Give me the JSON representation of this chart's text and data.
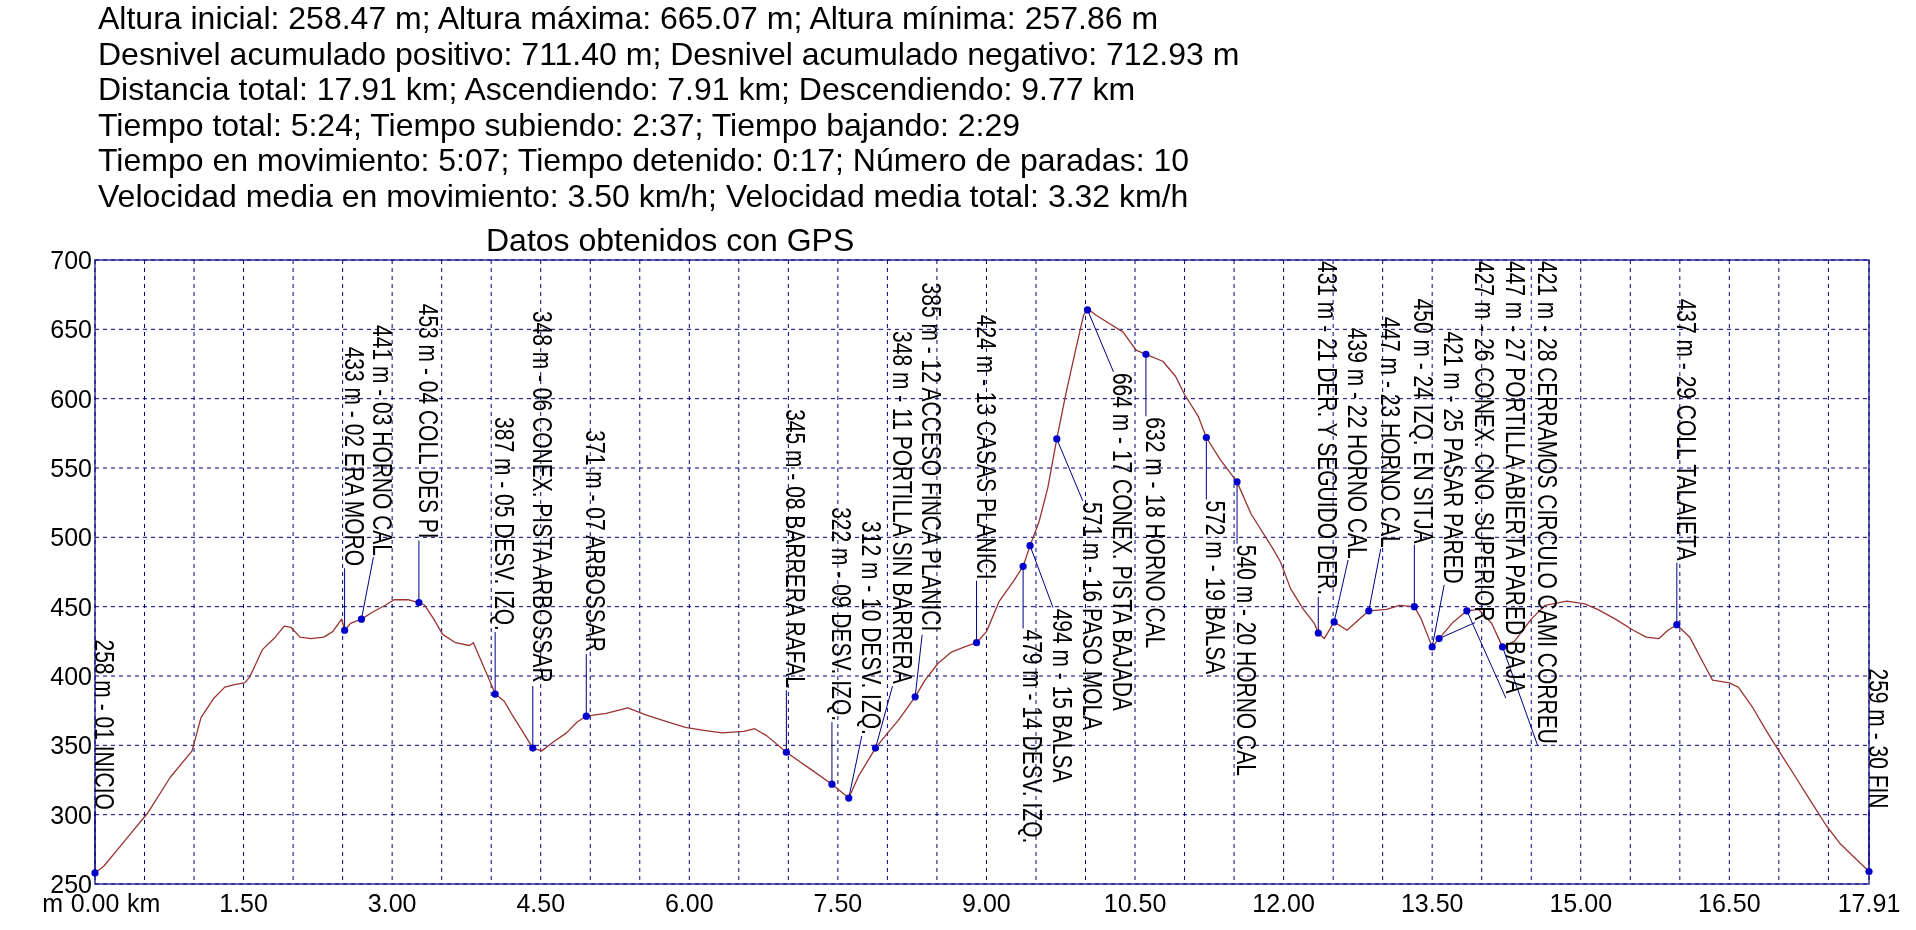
{
  "chart_data": {
    "type": "line",
    "title": "Datos obtenidos con GPS",
    "xlabel": "km",
    "ylabel": "m",
    "xlim": [
      0,
      17.91
    ],
    "ylim": [
      250,
      700
    ],
    "xticks": [
      {
        "value": 0,
        "label": "0.00"
      },
      {
        "value": 0.5,
        "label": null
      },
      {
        "value": 1,
        "label": null
      },
      {
        "value": 1.5,
        "label": "1.50"
      },
      {
        "value": 2,
        "label": null
      },
      {
        "value": 2.5,
        "label": null
      },
      {
        "value": 3,
        "label": "3.00"
      },
      {
        "value": 3.5,
        "label": null
      },
      {
        "value": 4,
        "label": null
      },
      {
        "value": 4.5,
        "label": "4.50"
      },
      {
        "value": 5,
        "label": null
      },
      {
        "value": 5.5,
        "label": null
      },
      {
        "value": 6,
        "label": "6.00"
      },
      {
        "value": 6.5,
        "label": null
      },
      {
        "value": 7,
        "label": null
      },
      {
        "value": 7.5,
        "label": "7.50"
      },
      {
        "value": 8,
        "label": null
      },
      {
        "value": 8.5,
        "label": null
      },
      {
        "value": 9,
        "label": "9.00"
      },
      {
        "value": 9.5,
        "label": null
      },
      {
        "value": 10,
        "label": null
      },
      {
        "value": 10.5,
        "label": "10.50"
      },
      {
        "value": 11,
        "label": null
      },
      {
        "value": 11.5,
        "label": null
      },
      {
        "value": 12,
        "label": "12.00"
      },
      {
        "value": 12.5,
        "label": null
      },
      {
        "value": 13,
        "label": null
      },
      {
        "value": 13.5,
        "label": "13.50"
      },
      {
        "value": 14,
        "label": null
      },
      {
        "value": 14.5,
        "label": null
      },
      {
        "value": 15,
        "label": "15.00"
      },
      {
        "value": 15.5,
        "label": null
      },
      {
        "value": 16,
        "label": null
      },
      {
        "value": 16.5,
        "label": "16.50"
      },
      {
        "value": 17,
        "label": null
      },
      {
        "value": 17.5,
        "label": null
      },
      {
        "value": 17.91,
        "label": "17.91"
      }
    ],
    "yticks": [
      250,
      300,
      350,
      400,
      450,
      500,
      550,
      600,
      650,
      700
    ],
    "grid": true,
    "series": [
      {
        "type": "line",
        "color": "#993333",
        "x": [
          0,
          0.09,
          0.31,
          0.53,
          0.76,
          0.98,
          1.07,
          1.2,
          1.31,
          1.42,
          1.51,
          1.56,
          1.69,
          1.82,
          1.91,
          1.98,
          2.07,
          2.18,
          2.31,
          2.4,
          2.49,
          2.52,
          2.58,
          2.69,
          2.8,
          2.93,
          3.02,
          3.16,
          3.27,
          3.33,
          3.42,
          3.51,
          3.64,
          3.78,
          3.82,
          3.91,
          4.0,
          4.04,
          4.13,
          4.22,
          4.36,
          4.42,
          4.51,
          4.62,
          4.76,
          4.87,
          4.96,
          5.16,
          5.38,
          5.56,
          5.78,
          5.96,
          6.13,
          6.33,
          6.55,
          6.66,
          6.78,
          6.98,
          7.22,
          7.44,
          7.61,
          7.71,
          7.88,
          7.98,
          8.11,
          8.28,
          8.38,
          8.51,
          8.64,
          8.78,
          8.9,
          9.0,
          9.13,
          9.27,
          9.37,
          9.44,
          9.53,
          9.62,
          9.71,
          9.8,
          9.89,
          9.98,
          10.02,
          10.11,
          10.2,
          10.38,
          10.51,
          10.61,
          10.78,
          10.91,
          11.0,
          11.14,
          11.22,
          11.36,
          11.53,
          11.67,
          11.89,
          11.97,
          12.07,
          12.2,
          12.31,
          12.35,
          12.41,
          12.51,
          12.64,
          12.86,
          13.04,
          13.17,
          13.32,
          13.39,
          13.5,
          13.57,
          13.7,
          13.85,
          13.97,
          14.1,
          14.21,
          14.33,
          14.5,
          14.64,
          14.86,
          15.04,
          15.17,
          15.35,
          15.53,
          15.66,
          15.79,
          15.88,
          15.97,
          16.1,
          16.24,
          16.33,
          16.5,
          16.59,
          16.73,
          16.86,
          17.0,
          17.17,
          17.31,
          17.48,
          17.62,
          17.75,
          17.91
        ],
        "values": [
          258,
          263,
          282,
          301,
          327,
          346,
          370,
          384,
          392,
          394,
          395,
          399,
          419,
          428,
          436,
          435,
          428,
          427,
          428,
          432,
          441,
          433,
          438,
          441,
          446,
          451,
          455,
          455,
          453,
          451,
          441,
          430,
          424,
          422,
          424,
          409,
          394,
          387,
          382,
          371,
          355,
          348,
          346,
          352,
          359,
          367,
          371,
          373,
          377,
          372,
          367,
          363,
          361,
          359,
          360,
          362,
          357,
          345,
          333,
          322,
          312,
          328,
          348,
          357,
          368,
          385,
          397,
          409,
          417,
          421,
          424,
          432,
          454,
          468,
          479,
          494,
          511,
          536,
          571,
          603,
          632,
          660,
          665,
          660,
          656,
          648,
          635,
          632,
          627,
          616,
          603,
          587,
          572,
          556,
          540,
          517,
          492,
          482,
          463,
          448,
          438,
          431,
          427,
          439,
          433,
          447,
          448,
          451,
          450,
          441,
          421,
          427,
          438,
          447,
          448,
          438,
          421,
          425,
          441,
          451,
          454,
          452,
          448,
          441,
          433,
          428,
          427,
          433,
          437,
          428,
          409,
          397,
          395,
          392,
          378,
          362,
          346,
          327,
          311,
          292,
          279,
          270,
          259
        ]
      },
      {
        "type": "scatter",
        "color": "#0000cc",
        "marker": "circle",
        "x": [
          0,
          2.52,
          2.69,
          3.27,
          4.04,
          4.42,
          4.96,
          6.98,
          7.44,
          7.61,
          7.88,
          8.28,
          8.9,
          9.37,
          9.44,
          9.71,
          10.02,
          10.61,
          11.22,
          11.53,
          12.35,
          12.51,
          12.86,
          13.32,
          13.5,
          13.57,
          13.85,
          14.21,
          15.97,
          17.91
        ],
        "values": [
          258,
          433,
          441,
          453,
          387,
          348,
          371,
          345,
          322,
          312,
          348,
          385,
          424,
          479,
          494,
          571,
          664,
          632,
          572,
          540,
          431,
          439,
          447,
          450,
          421,
          427,
          447,
          421,
          437,
          259
        ]
      }
    ],
    "annotations": [
      "Altura inicial: 258.47 m; Altura máxima: 665.07 m; Altura mínima: 257.86 m",
      "Desnivel acumulado positivo: 711.40 m; Desnivel acumulado negativo: 712.93 m",
      "Distancia total: 17.91 km; Ascendiendo: 7.91 km; Descendiendo: 9.77 km",
      "Tiempo total: 5:24; Tiempo subiendo: 2:37; Tiempo bajando: 2:29",
      "Tiempo en movimiento: 5:07; Tiempo detenido: 0:17; Número de paradas: 10",
      "Velocidad media en movimiento: 3.50 km/h; Velocidad media total: 3.32 km/h",
      {
        "text": "258 m - 01 INICIO",
        "x": 0,
        "y": 258
      },
      {
        "text": "433 m - 02 ERA MORO",
        "x": 2.52,
        "y": 433
      },
      {
        "text": "441 m - 03 HORNO CAL",
        "x": 2.69,
        "y": 441
      },
      {
        "text": "453 m - 04 COLL DES PI",
        "x": 3.27,
        "y": 453
      },
      {
        "text": "387 m - 05 DESV. IZQ.",
        "x": 4.04,
        "y": 387
      },
      {
        "text": "348 m - 06 CONEX. PISTA ARBOSSAR",
        "x": 4.42,
        "y": 348
      },
      {
        "text": "371 m - 07 ARBOSSAR",
        "x": 4.96,
        "y": 371
      },
      {
        "text": "345 m - 08 BARRERA RAFAL",
        "x": 6.98,
        "y": 345
      },
      {
        "text": "322 m - 09 DESV. IZQ.",
        "x": 7.44,
        "y": 322
      },
      {
        "text": "312 m - 10 DESV. IZQ.",
        "x": 7.61,
        "y": 312
      },
      {
        "text": "348 m - 11 PORTILLA SIN BARRERA",
        "x": 7.88,
        "y": 348
      },
      {
        "text": "385 m - 12 ACCESO FINCA PLANICI",
        "x": 8.28,
        "y": 385
      },
      {
        "text": "424 m - 13 CASAS PLANICI",
        "x": 8.9,
        "y": 424
      },
      {
        "text": "479 m - 14 DESV. IZQ.",
        "x": 9.37,
        "y": 479
      },
      {
        "text": "494 m - 15 BALSA",
        "x": 9.44,
        "y": 494
      },
      {
        "text": "571 m - 16 PASO MOLA",
        "x": 9.71,
        "y": 571
      },
      {
        "text": "664 m - 17 CONEX. PISTA BAJADA",
        "x": 10.02,
        "y": 664
      },
      {
        "text": "632 m - 18 HORNO CAL",
        "x": 10.61,
        "y": 632
      },
      {
        "text": "572 m - 19 BALSA",
        "x": 11.22,
        "y": 572
      },
      {
        "text": "540 m - 20 HORNO CAL",
        "x": 11.53,
        "y": 540
      },
      {
        "text": "431 m - 21 DER. Y SEGUIDO DER.",
        "x": 12.35,
        "y": 431
      },
      {
        "text": "439 m - 22 HORNO CAL",
        "x": 12.51,
        "y": 439
      },
      {
        "text": "447 m - 23 HORNO CAL",
        "x": 12.86,
        "y": 447
      },
      {
        "text": "450 m - 24 IZQ. EN SITJA",
        "x": 13.32,
        "y": 450
      },
      {
        "text": "421 m - 25 PASAR PARED",
        "x": 13.5,
        "y": 421
      },
      {
        "text": "427 m - 26 CONEX. CNO. SUPERIOR",
        "x": 13.57,
        "y": 427
      },
      {
        "text": "447 m - 27 PORTILLA ABIERTA PARED BAJA",
        "x": 13.85,
        "y": 447
      },
      {
        "text": "421 m - 28 CERRAMOS CIRCULO CAMI CORREU",
        "x": 14.21,
        "y": 421
      },
      {
        "text": "437 m - 29 COLL TALAIETA",
        "x": 15.97,
        "y": 437
      },
      {
        "text": "259 m - 30 FIN",
        "x": 17.91,
        "y": 259
      }
    ]
  }
}
